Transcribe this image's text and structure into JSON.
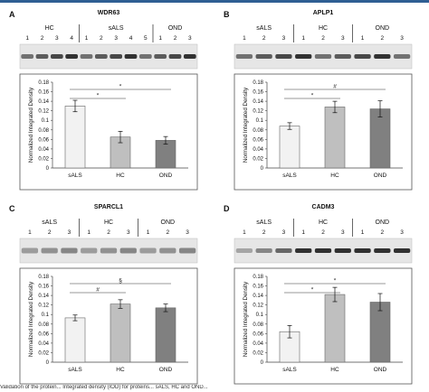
{
  "panels": [
    {
      "letter": "A",
      "title": "WDR63",
      "groups": [
        {
          "label": "HC",
          "lanes": [
            "1",
            "2",
            "3",
            "4"
          ]
        },
        {
          "label": "sALS",
          "lanes": [
            "1",
            "2",
            "3",
            "4",
            "5"
          ]
        },
        {
          "label": "OND",
          "lanes": [
            "1",
            "2",
            "3"
          ]
        }
      ],
      "blot_style": "dark",
      "chart_data": {
        "type": "bar",
        "categories": [
          "sALS",
          "HC",
          "OND"
        ],
        "values": [
          0.13,
          0.065,
          0.058
        ],
        "errors": [
          0.012,
          0.012,
          0.008
        ],
        "colors": [
          "#f2f2f2",
          "#bfbfbf",
          "#808080"
        ],
        "ylabel": "Normalized Integrated Density",
        "ylim": [
          0,
          0.18
        ],
        "yticks": [
          "0",
          "0.02",
          "0.04",
          "0.06",
          "0.08",
          "0.1",
          "0.12",
          "0.14",
          "0.16",
          "0.18"
        ],
        "significance": [
          {
            "from": "sALS",
            "to": "OND",
            "symbol": "*"
          },
          {
            "from": "sALS",
            "to": "HC",
            "symbol": "*"
          }
        ]
      }
    },
    {
      "letter": "B",
      "title": "APLP1",
      "groups": [
        {
          "label": "sALS",
          "lanes": [
            "1",
            "2",
            "3"
          ]
        },
        {
          "label": "HC",
          "lanes": [
            "1",
            "2",
            "3"
          ]
        },
        {
          "label": "OND",
          "lanes": [
            "1",
            "2",
            "3"
          ]
        }
      ],
      "blot_style": "dark",
      "chart_data": {
        "type": "bar",
        "categories": [
          "sALS",
          "HC",
          "OND"
        ],
        "values": [
          0.088,
          0.128,
          0.124
        ],
        "errors": [
          0.007,
          0.012,
          0.017
        ],
        "colors": [
          "#f2f2f2",
          "#bfbfbf",
          "#808080"
        ],
        "ylabel": "Normalized Integrated Density",
        "ylim": [
          0,
          0.18
        ],
        "yticks": [
          "0",
          "0.02",
          "0.04",
          "0.06",
          "0.08",
          "0.1",
          "0.12",
          "0.14",
          "0.16",
          "0.18"
        ],
        "significance": [
          {
            "from": "sALS",
            "to": "OND",
            "symbol": "#"
          },
          {
            "from": "sALS",
            "to": "HC",
            "symbol": "*"
          }
        ]
      }
    },
    {
      "letter": "C",
      "title": "SPARCL1",
      "groups": [
        {
          "label": "sALS",
          "lanes": [
            "1",
            "2",
            "3"
          ]
        },
        {
          "label": "HC",
          "lanes": [
            "1",
            "2",
            "3"
          ]
        },
        {
          "label": "OND",
          "lanes": [
            "1",
            "2",
            "3"
          ]
        }
      ],
      "blot_style": "light",
      "chart_data": {
        "type": "bar",
        "categories": [
          "sALS",
          "HC",
          "OND"
        ],
        "values": [
          0.093,
          0.122,
          0.114
        ],
        "errors": [
          0.006,
          0.009,
          0.008
        ],
        "colors": [
          "#f2f2f2",
          "#bfbfbf",
          "#808080"
        ],
        "ylabel": "Normalized Integrated Density",
        "ylim": [
          0,
          0.18
        ],
        "yticks": [
          "0",
          "0.02",
          "0.04",
          "0.06",
          "0.08",
          "0.1",
          "0.12",
          "0.14",
          "0.16",
          "0.18"
        ],
        "significance": [
          {
            "from": "sALS",
            "to": "OND",
            "symbol": "§"
          },
          {
            "from": "sALS",
            "to": "HC",
            "symbol": "#"
          }
        ]
      }
    },
    {
      "letter": "D",
      "title": "CADM3",
      "groups": [
        {
          "label": "sALS",
          "lanes": [
            "1",
            "2",
            "3"
          ]
        },
        {
          "label": "HC",
          "lanes": [
            "1",
            "2",
            "3"
          ]
        },
        {
          "label": "OND",
          "lanes": [
            "1",
            "2",
            "3"
          ]
        }
      ],
      "blot_style": "mixed",
      "chart_data": {
        "type": "bar",
        "categories": [
          "sALS",
          "HC",
          "OND"
        ],
        "values": [
          0.064,
          0.142,
          0.126
        ],
        "errors": [
          0.013,
          0.015,
          0.018
        ],
        "colors": [
          "#f2f2f2",
          "#bfbfbf",
          "#808080"
        ],
        "ylabel": "Normalized Integrated Density",
        "ylim": [
          0,
          0.18
        ],
        "yticks": [
          "0",
          "0.02",
          "0.04",
          "0.06",
          "0.08",
          "0.1",
          "0.12",
          "0.14",
          "0.16",
          "0.18"
        ],
        "significance": [
          {
            "from": "sALS",
            "to": "OND",
            "symbol": "*"
          },
          {
            "from": "sALS",
            "to": "HC",
            "symbol": "*"
          }
        ]
      }
    }
  ],
  "caption": "Validation of the protein... Integrated density (IOD) for proteins... sALS, HC and OND..."
}
